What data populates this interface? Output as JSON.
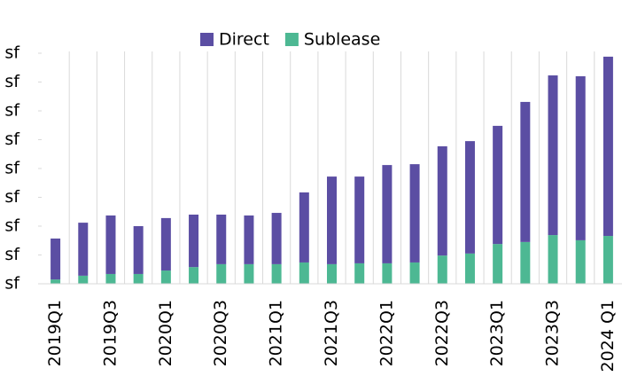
{
  "chart_data": {
    "type": "bar",
    "stacked": true,
    "categories": [
      "2019Q1",
      null,
      "2019Q3",
      null,
      "2020Q1",
      null,
      "2020Q3",
      null,
      "2021Q1",
      null,
      "2021Q3",
      null,
      "2022Q1",
      null,
      "2022Q3",
      null,
      "2023Q1",
      null,
      "2023Q3",
      null,
      "2024 Q1"
    ],
    "series": [
      {
        "name": "Sublease",
        "color": "#4db893",
        "values": [
          0.15,
          0.28,
          0.34,
          0.34,
          0.46,
          0.58,
          0.68,
          0.68,
          0.68,
          0.74,
          0.68,
          0.71,
          0.71,
          0.74,
          0.98,
          1.05,
          1.38,
          1.45,
          1.69,
          1.51,
          1.66
        ]
      },
      {
        "name": "Direct",
        "color": "#5b4ea3",
        "values": [
          1.42,
          1.84,
          2.03,
          1.66,
          1.82,
          1.82,
          1.72,
          1.69,
          1.78,
          2.43,
          3.04,
          3.01,
          3.41,
          3.41,
          3.79,
          3.9,
          4.1,
          4.86,
          5.54,
          5.69,
          6.22
        ]
      }
    ],
    "legend_order": [
      "Direct",
      "Sublease"
    ],
    "ylim": [
      0,
      8
    ],
    "yticks": [
      {
        "value": 0,
        "label": "sf"
      },
      {
        "value": 1,
        "label": "sf"
      },
      {
        "value": 2,
        "label": "sf"
      },
      {
        "value": 3,
        "label": "sf"
      },
      {
        "value": 4,
        "label": "sf"
      },
      {
        "value": 5,
        "label": "sf"
      },
      {
        "value": 6,
        "label": "sf"
      },
      {
        "value": 7,
        "label": "sf"
      },
      {
        "value": 8,
        "label": "sf"
      }
    ],
    "grid": false,
    "legend": "top"
  }
}
